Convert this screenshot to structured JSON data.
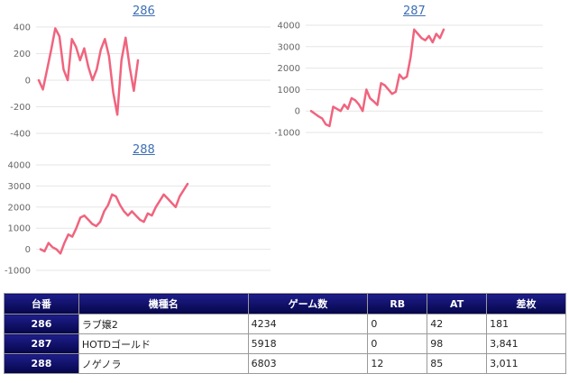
{
  "charts": [
    {
      "title": "286",
      "chart_data": {
        "type": "line",
        "ylim": [
          -400,
          400
        ],
        "yticks": [
          "400",
          "200",
          "0",
          "-200",
          "-400"
        ],
        "grid": true,
        "color": "#f0647e",
        "values": [
          0,
          -70,
          80,
          230,
          390,
          330,
          80,
          0,
          310,
          250,
          150,
          240,
          100,
          0,
          80,
          230,
          310,
          180,
          -90,
          -260,
          150,
          320,
          100,
          -80,
          150
        ]
      }
    },
    {
      "title": "287",
      "chart_data": {
        "type": "line",
        "ylim": [
          -1000,
          4000
        ],
        "yticks": [
          "4000",
          "3000",
          "2000",
          "1000",
          "0",
          "-1000"
        ],
        "grid": true,
        "color": "#f0647e",
        "values": [
          0,
          -120,
          -250,
          -350,
          -620,
          -700,
          200,
          100,
          0,
          300,
          100,
          600,
          500,
          300,
          0,
          1000,
          600,
          450,
          280,
          1300,
          1200,
          1000,
          800,
          900,
          1700,
          1500,
          1600,
          2500,
          3800,
          3600,
          3400,
          3300,
          3500,
          3200,
          3600,
          3400,
          3800
        ]
      }
    },
    {
      "title": "288",
      "chart_data": {
        "type": "line",
        "ylim": [
          -1000,
          4000
        ],
        "yticks": [
          "4000",
          "3000",
          "2000",
          "1000",
          "0",
          "-1000"
        ],
        "grid": true,
        "color": "#f0647e",
        "values": [
          0,
          -100,
          300,
          100,
          0,
          -200,
          300,
          700,
          600,
          1000,
          1500,
          1600,
          1400,
          1200,
          1100,
          1300,
          1800,
          2100,
          2600,
          2500,
          2100,
          1800,
          1600,
          1800,
          1600,
          1400,
          1300,
          1700,
          1600,
          2000,
          2300,
          2600,
          2400,
          2200,
          2000,
          2500,
          2800,
          3100
        ]
      }
    }
  ],
  "table": {
    "headers": [
      "台番",
      "機種名",
      "ゲーム数",
      "RB",
      "AT",
      "差枚"
    ],
    "rows": [
      [
        "286",
        "ラブ嬢2",
        "4234",
        "0",
        "42",
        "181"
      ],
      [
        "287",
        "HOTDゴールド",
        "5918",
        "0",
        "98",
        "3,841"
      ],
      [
        "288",
        "ノゲノラ",
        "6803",
        "12",
        "85",
        "3,011"
      ]
    ]
  }
}
